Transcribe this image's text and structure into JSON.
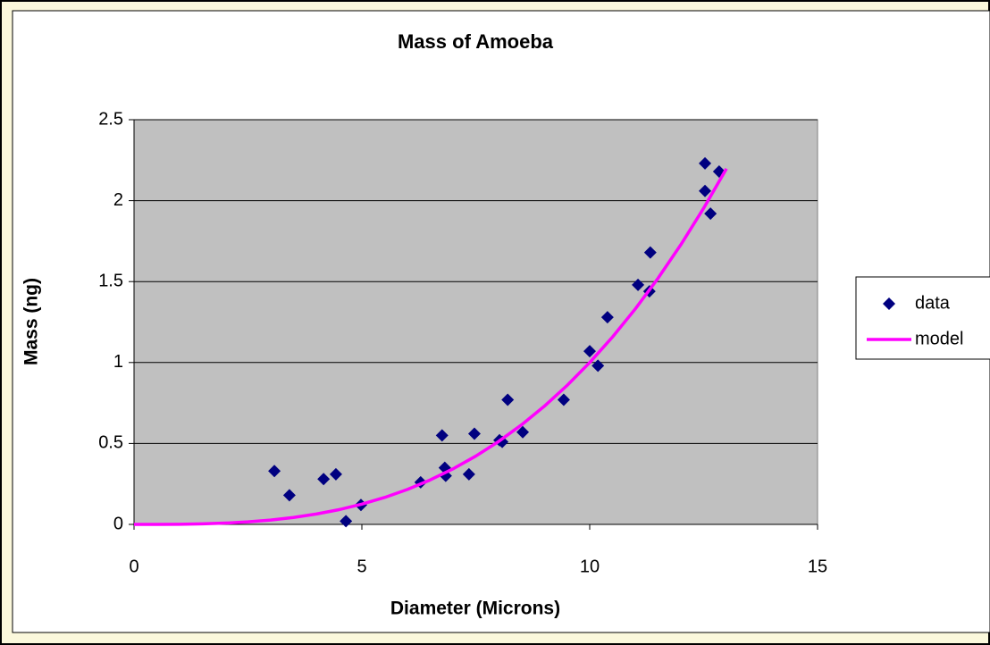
{
  "chart_data": {
    "type": "scatter",
    "title": "Mass of Amoeba",
    "xlabel": "Diameter (Microns)",
    "ylabel": "Mass (ng)",
    "xlim": [
      0,
      15
    ],
    "xticks": [
      0,
      5,
      10,
      15
    ],
    "ylim": [
      0,
      2.5
    ],
    "yticks": [
      0,
      0.5,
      1,
      1.5,
      2,
      2.5
    ],
    "grid": true,
    "legend": "right",
    "background": "#c0c0c0",
    "series": [
      {
        "name": "data",
        "color": "#000080",
        "marker": "diamond",
        "x": [
          3.08,
          3.41,
          4.16,
          4.43,
          4.65,
          4.98,
          6.29,
          6.76,
          6.82,
          6.84,
          7.35,
          7.47,
          8.02,
          8.08,
          8.2,
          8.53,
          9.43,
          10.0,
          10.18,
          10.39,
          11.06,
          11.31,
          11.33,
          12.53,
          12.53,
          12.65,
          12.84
        ],
        "values": [
          0.33,
          0.18,
          0.28,
          0.31,
          0.02,
          0.12,
          0.26,
          0.55,
          0.35,
          0.3,
          0.31,
          0.56,
          0.52,
          0.51,
          0.77,
          0.57,
          0.77,
          1.07,
          0.98,
          1.28,
          1.48,
          1.44,
          1.68,
          2.23,
          2.06,
          1.92,
          2.18
        ]
      },
      {
        "name": "model",
        "color": "#ff00ff",
        "marker": "line",
        "x": [
          0,
          0.5,
          1,
          1.5,
          2,
          2.5,
          3,
          3.5,
          4,
          4.5,
          5,
          5.5,
          6,
          6.5,
          7,
          7.5,
          8,
          8.5,
          9,
          9.5,
          10,
          10.5,
          11,
          11.5,
          12,
          12.5,
          13
        ],
        "values": [
          0,
          0.000125,
          0.001,
          0.003375,
          0.008,
          0.015625,
          0.027,
          0.042875,
          0.064,
          0.091125,
          0.125,
          0.166375,
          0.216,
          0.274625,
          0.343,
          0.421875,
          0.512,
          0.614125,
          0.729,
          0.857375,
          1,
          1.157625,
          1.331,
          1.520875,
          1.728,
          1.953125,
          2.197
        ]
      }
    ]
  }
}
